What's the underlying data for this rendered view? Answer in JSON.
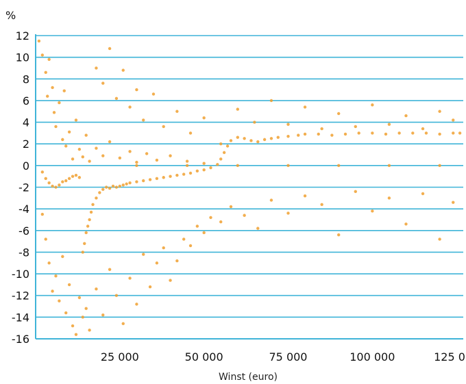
{
  "chart_data": {
    "type": "scatter",
    "title": "",
    "y_unit_label": "%",
    "xlabel": "Winst (euro)",
    "ylabel": "",
    "xlim": [
      0,
      127000
    ],
    "ylim": [
      -16,
      12
    ],
    "x_ticks": [
      {
        "value": 25000,
        "label": "25 000"
      },
      {
        "value": 50000,
        "label": "50 000"
      },
      {
        "value": 75000,
        "label": "75 000"
      },
      {
        "value": 100000,
        "label": "100 000"
      },
      {
        "value": 125000,
        "label": "125 000"
      }
    ],
    "y_ticks": [
      {
        "value": 12,
        "label": "12"
      },
      {
        "value": 10,
        "label": "10"
      },
      {
        "value": 8,
        "label": "8"
      },
      {
        "value": 6,
        "label": "6"
      },
      {
        "value": 4,
        "label": "4"
      },
      {
        "value": 2,
        "label": "2"
      },
      {
        "value": 0,
        "label": "0"
      },
      {
        "value": -2,
        "label": "-2"
      },
      {
        "value": -4,
        "label": "-4"
      },
      {
        "value": -6,
        "label": "-6"
      },
      {
        "value": -8,
        "label": "-8"
      },
      {
        "value": -10,
        "label": "-10"
      },
      {
        "value": -12,
        "label": "-12"
      },
      {
        "value": -14,
        "label": "-14"
      },
      {
        "value": -16,
        "label": "-16"
      }
    ],
    "grid": "horizontal",
    "legend": "none",
    "colors": {
      "points": "#f0a030",
      "grid": "#3fb4d8",
      "axis": "#3fb4d8"
    },
    "series": [
      {
        "values": [
          [
            1000,
            11.5
          ],
          [
            2000,
            10.2
          ],
          [
            3000,
            8.6
          ],
          [
            3500,
            6.4
          ],
          [
            4000,
            9.8
          ],
          [
            5000,
            7.2
          ],
          [
            5500,
            4.9
          ],
          [
            6000,
            3.6
          ],
          [
            7000,
            5.8
          ],
          [
            8000,
            2.4
          ],
          [
            8500,
            6.9
          ],
          [
            9000,
            1.8
          ],
          [
            10000,
            3.1
          ],
          [
            11000,
            0.6
          ],
          [
            12000,
            4.2
          ],
          [
            13000,
            1.5
          ],
          [
            14000,
            0.8
          ],
          [
            15000,
            2.8
          ],
          [
            16000,
            0.4
          ],
          [
            18000,
            1.6
          ],
          [
            20000,
            0.9
          ],
          [
            22000,
            2.2
          ],
          [
            25000,
            0.7
          ],
          [
            28000,
            1.3
          ],
          [
            30000,
            0.3
          ],
          [
            33000,
            1.1
          ],
          [
            36000,
            0.5
          ],
          [
            40000,
            0.9
          ],
          [
            45000,
            0.4
          ],
          [
            50000,
            0.2
          ],
          [
            2000,
            -0.6
          ],
          [
            3000,
            -1.2
          ],
          [
            4000,
            -1.6
          ],
          [
            5000,
            -1.9
          ],
          [
            6000,
            -2.0
          ],
          [
            7000,
            -1.8
          ],
          [
            8000,
            -1.5
          ],
          [
            9000,
            -1.4
          ],
          [
            10000,
            -1.2
          ],
          [
            11000,
            -1.0
          ],
          [
            12000,
            -0.9
          ],
          [
            13000,
            -1.1
          ],
          [
            14000,
            -8.0
          ],
          [
            14500,
            -7.2
          ],
          [
            15000,
            -6.2
          ],
          [
            15500,
            -5.6
          ],
          [
            16000,
            -5.0
          ],
          [
            16500,
            -4.3
          ],
          [
            17000,
            -3.6
          ],
          [
            18000,
            -3.0
          ],
          [
            19000,
            -2.5
          ],
          [
            20000,
            -2.2
          ],
          [
            21000,
            -2.0
          ],
          [
            22000,
            -2.1
          ],
          [
            23000,
            -1.9
          ],
          [
            24000,
            -2.0
          ],
          [
            25000,
            -1.9
          ],
          [
            26000,
            -1.8
          ],
          [
            27000,
            -1.7
          ],
          [
            28000,
            -1.6
          ],
          [
            30000,
            -1.5
          ],
          [
            32000,
            -1.4
          ],
          [
            34000,
            -1.3
          ],
          [
            36000,
            -1.2
          ],
          [
            38000,
            -1.1
          ],
          [
            40000,
            -1.0
          ],
          [
            42000,
            -0.9
          ],
          [
            44000,
            -0.8
          ],
          [
            46000,
            -0.7
          ],
          [
            48000,
            -0.5
          ],
          [
            50000,
            -0.4
          ],
          [
            52000,
            -0.2
          ],
          [
            54000,
            0.1
          ],
          [
            55000,
            0.6
          ],
          [
            56000,
            1.2
          ],
          [
            57000,
            1.8
          ],
          [
            58000,
            2.3
          ],
          [
            60000,
            2.6
          ],
          [
            62000,
            2.5
          ],
          [
            64000,
            2.3
          ],
          [
            66000,
            2.2
          ],
          [
            68000,
            2.4
          ],
          [
            70000,
            2.5
          ],
          [
            72000,
            2.6
          ],
          [
            75000,
            2.7
          ],
          [
            78000,
            2.8
          ],
          [
            80000,
            2.9
          ],
          [
            84000,
            2.9
          ],
          [
            88000,
            2.8
          ],
          [
            92000,
            2.9
          ],
          [
            96000,
            3.0
          ],
          [
            100000,
            3.0
          ],
          [
            104000,
            2.9
          ],
          [
            108000,
            3.0
          ],
          [
            112000,
            3.0
          ],
          [
            116000,
            3.0
          ],
          [
            120000,
            2.9
          ],
          [
            124000,
            3.0
          ],
          [
            126000,
            3.0
          ],
          [
            2000,
            -4.5
          ],
          [
            3000,
            -6.8
          ],
          [
            4000,
            -9.0
          ],
          [
            5000,
            -11.6
          ],
          [
            6000,
            -10.2
          ],
          [
            7000,
            -12.5
          ],
          [
            8000,
            -8.4
          ],
          [
            9000,
            -13.6
          ],
          [
            10000,
            -11.0
          ],
          [
            11000,
            -14.8
          ],
          [
            12000,
            -15.6
          ],
          [
            13000,
            -12.2
          ],
          [
            14000,
            -14.0
          ],
          [
            15000,
            -13.2
          ],
          [
            16000,
            -15.2
          ],
          [
            18000,
            -11.4
          ],
          [
            20000,
            -13.8
          ],
          [
            22000,
            -9.6
          ],
          [
            24000,
            -12.0
          ],
          [
            26000,
            -14.6
          ],
          [
            28000,
            -10.4
          ],
          [
            30000,
            -12.8
          ],
          [
            32000,
            -8.2
          ],
          [
            34000,
            -11.2
          ],
          [
            36000,
            -9.0
          ],
          [
            38000,
            -7.6
          ],
          [
            40000,
            -10.6
          ],
          [
            42000,
            -8.8
          ],
          [
            44000,
            -6.8
          ],
          [
            46000,
            -7.4
          ],
          [
            48000,
            -5.6
          ],
          [
            50000,
            -6.2
          ],
          [
            52000,
            -4.8
          ],
          [
            55000,
            -5.2
          ],
          [
            58000,
            -3.8
          ],
          [
            62000,
            -4.6
          ],
          [
            66000,
            -5.8
          ],
          [
            70000,
            -3.2
          ],
          [
            75000,
            -4.4
          ],
          [
            80000,
            -2.8
          ],
          [
            85000,
            -3.6
          ],
          [
            90000,
            -6.4
          ],
          [
            95000,
            -2.4
          ],
          [
            100000,
            -4.2
          ],
          [
            105000,
            -3.0
          ],
          [
            110000,
            -5.4
          ],
          [
            115000,
            -2.6
          ],
          [
            120000,
            -6.8
          ],
          [
            124000,
            -3.4
          ],
          [
            18000,
            9.0
          ],
          [
            20000,
            7.6
          ],
          [
            22000,
            10.8
          ],
          [
            24000,
            6.2
          ],
          [
            26000,
            8.8
          ],
          [
            28000,
            5.4
          ],
          [
            30000,
            7.0
          ],
          [
            32000,
            4.2
          ],
          [
            35000,
            6.6
          ],
          [
            38000,
            3.6
          ],
          [
            42000,
            5.0
          ],
          [
            46000,
            3.0
          ],
          [
            50000,
            4.4
          ],
          [
            55000,
            2.0
          ],
          [
            60000,
            5.2
          ],
          [
            65000,
            4.0
          ],
          [
            70000,
            6.0
          ],
          [
            75000,
            3.8
          ],
          [
            80000,
            5.4
          ],
          [
            85000,
            3.4
          ],
          [
            90000,
            4.8
          ],
          [
            95000,
            3.6
          ],
          [
            100000,
            5.6
          ],
          [
            105000,
            3.8
          ],
          [
            110000,
            4.6
          ],
          [
            115000,
            3.4
          ],
          [
            120000,
            5.0
          ],
          [
            124000,
            4.2
          ],
          [
            30000,
            0.0
          ],
          [
            45000,
            0.0
          ],
          [
            60000,
            0.0
          ],
          [
            75000,
            0.0
          ],
          [
            90000,
            0.0
          ],
          [
            105000,
            0.0
          ],
          [
            120000,
            0.0
          ]
        ]
      }
    ]
  }
}
